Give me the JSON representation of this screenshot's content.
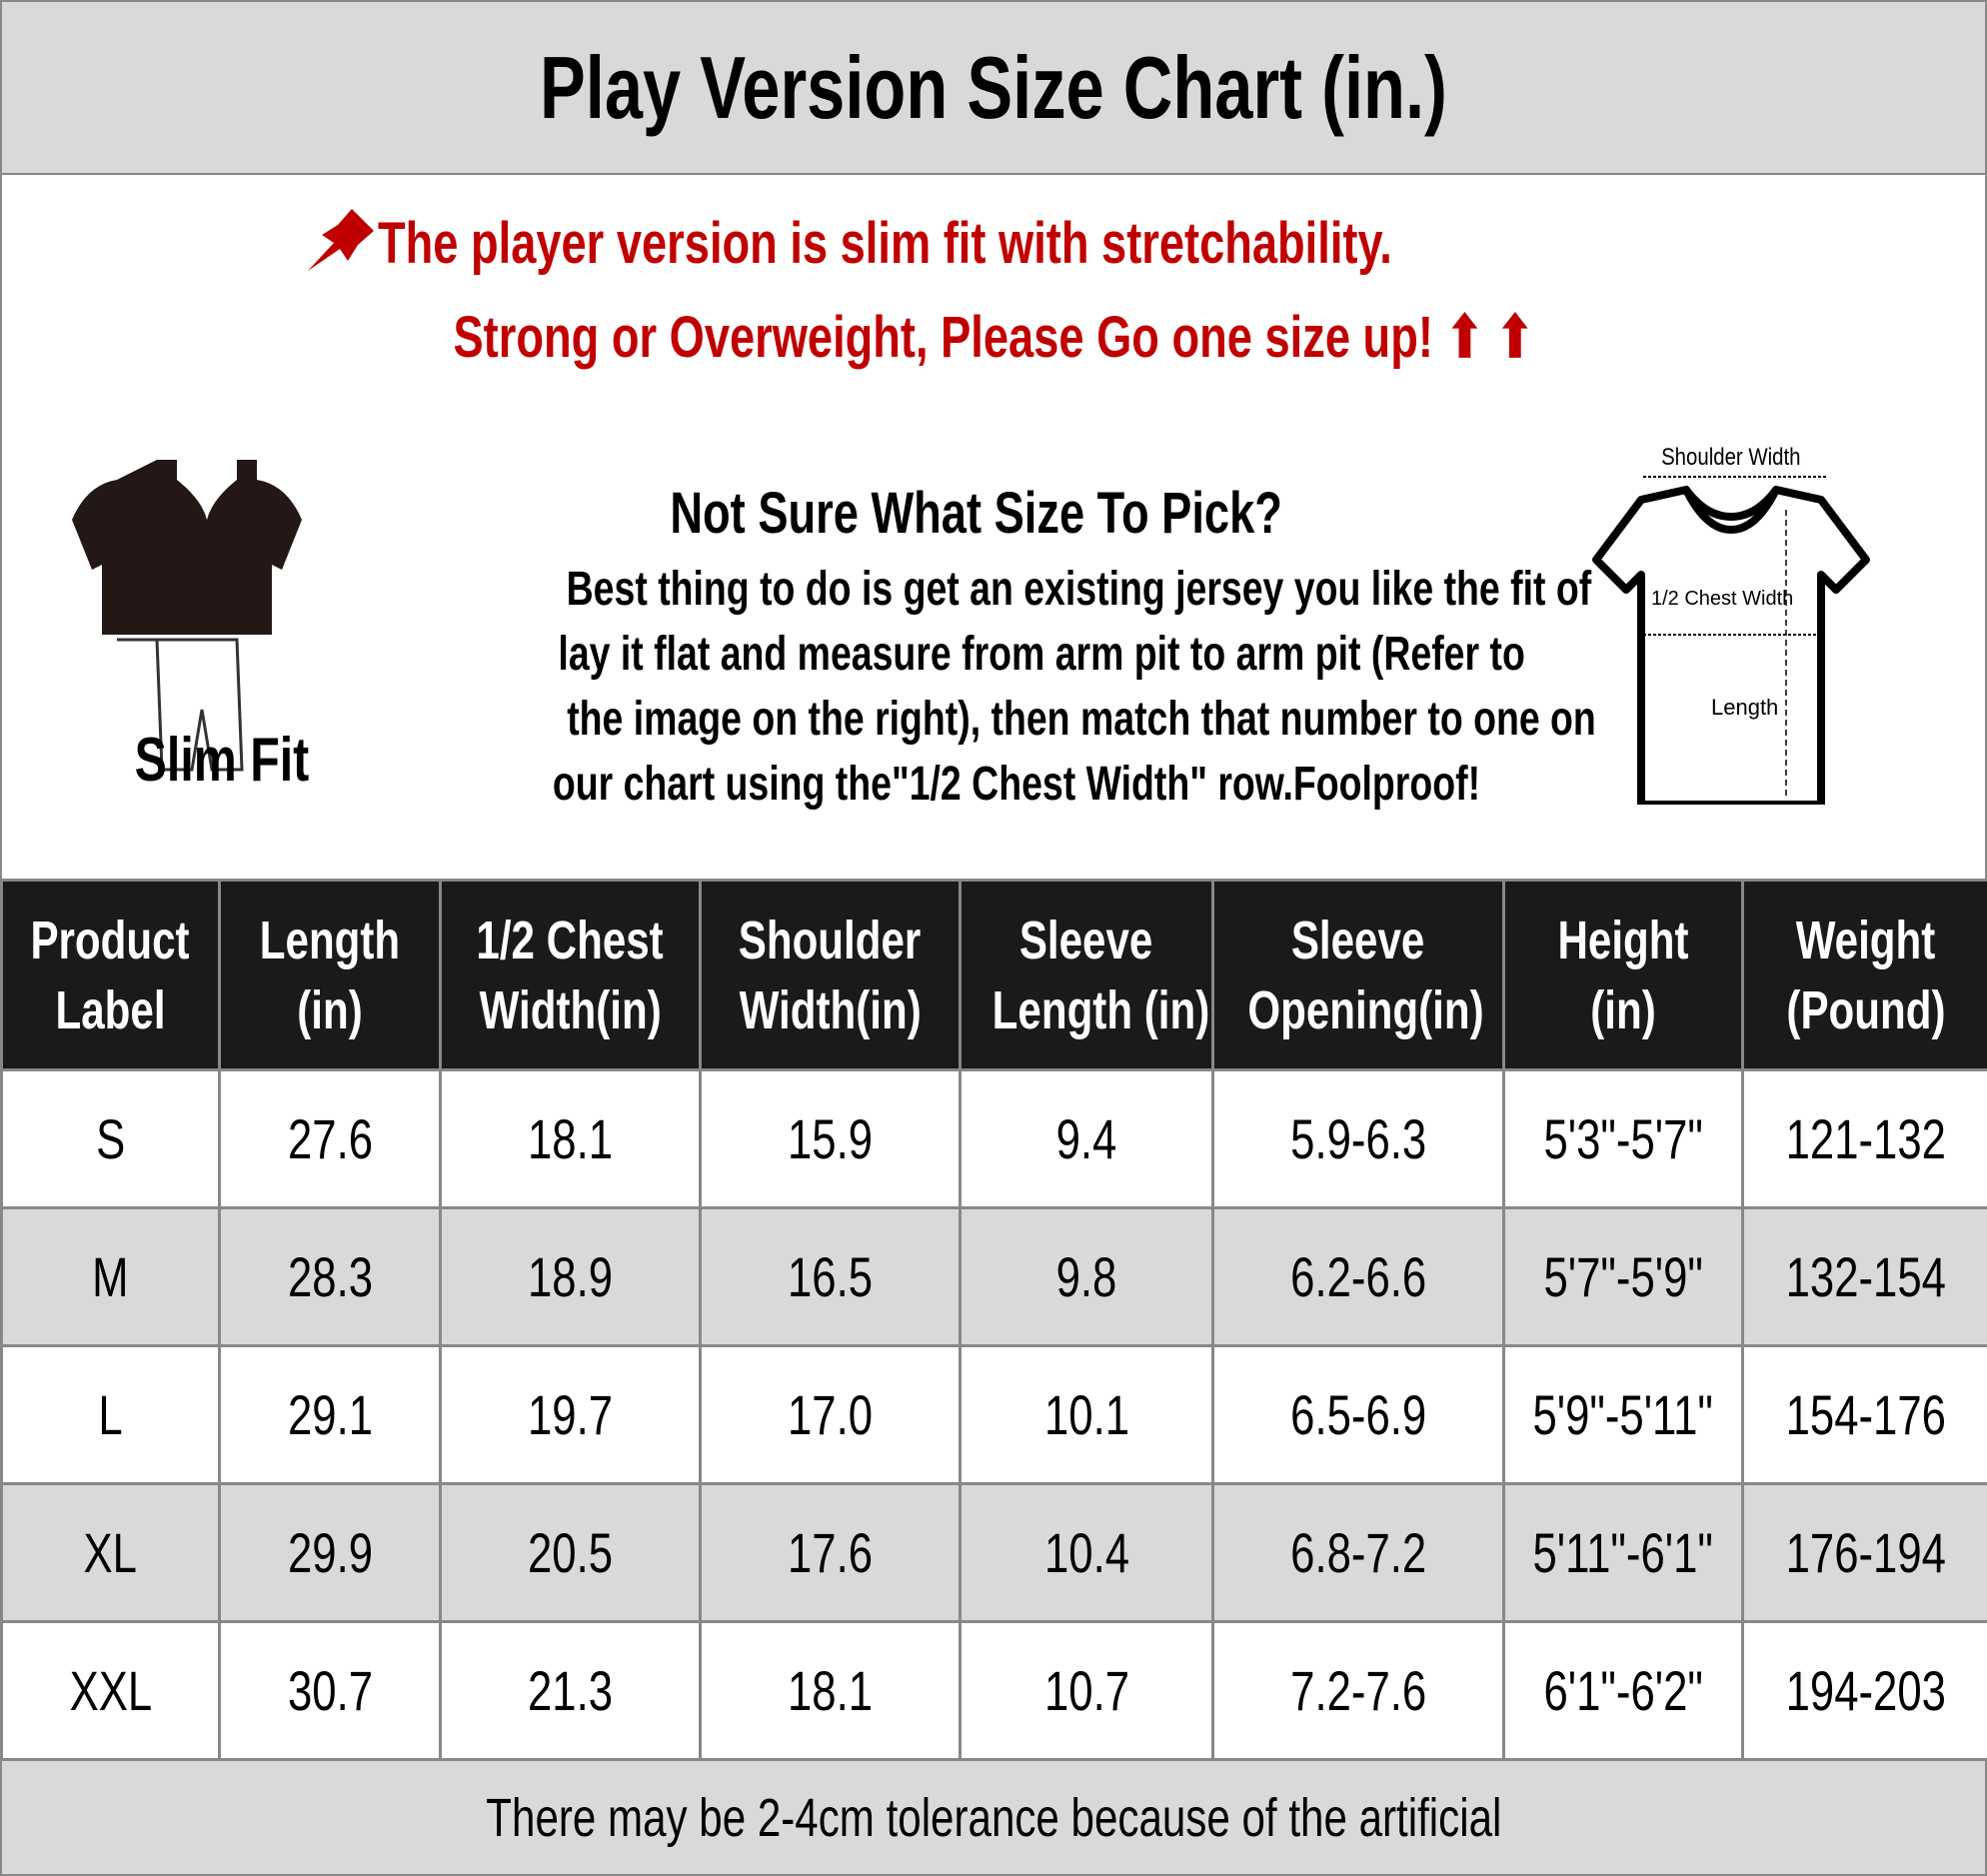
{
  "title": "Play Version Size Chart (in.)",
  "notice": {
    "line1": "The player version is slim fit with stretchability.",
    "line2": "Strong or Overweight, Please Go one size up! ⬆ ⬆",
    "pin_icon": "pushpin-icon",
    "color": "#c00000"
  },
  "fit": {
    "label": "Slim Fit"
  },
  "guide": {
    "title": "Not Sure What Size To Pick?",
    "lines": [
      "Best thing to do is get an existing jersey you like the fit of",
      "lay it flat and measure from arm pit to arm pit (Refer to",
      "the image on the right), then match that number to one on",
      "our chart using the\"1/2 Chest Width\" row.Foolproof!"
    ]
  },
  "diagram": {
    "shoulder": "Shoulder Width",
    "chest": "1/2 Chest Width",
    "length": "Length"
  },
  "table": {
    "headers": [
      [
        "Product",
        "Label"
      ],
      [
        "Length",
        "(in)"
      ],
      [
        "1/2 Chest",
        "Width(in)"
      ],
      [
        "Shoulder",
        "Width(in)"
      ],
      [
        "Sleeve",
        "Length (in)"
      ],
      [
        "Sleeve",
        "Opening(in)"
      ],
      [
        "Height",
        "(in)"
      ],
      [
        "Weight",
        "(Pound)"
      ]
    ],
    "rows": [
      [
        "S",
        "27.6",
        "18.1",
        "15.9",
        "9.4",
        "5.9-6.3",
        "5'3\"-5'7\"",
        "121-132"
      ],
      [
        "M",
        "28.3",
        "18.9",
        "16.5",
        "9.8",
        "6.2-6.6",
        "5'7\"-5'9\"",
        "132-154"
      ],
      [
        "L",
        "29.1",
        "19.7",
        "17.0",
        "10.1",
        "6.5-6.9",
        "5'9\"-5'11\"",
        "154-176"
      ],
      [
        "XL",
        "29.9",
        "20.5",
        "17.6",
        "10.4",
        "6.8-7.2",
        "5'11\"-6'1\"",
        "176-194"
      ],
      [
        "XXL",
        "30.7",
        "21.3",
        "18.1",
        "10.7",
        "7.2-7.6",
        "6'1\"-6'2\"",
        "194-203"
      ]
    ]
  },
  "footer": "There may be 2-4cm tolerance because of the artificial"
}
